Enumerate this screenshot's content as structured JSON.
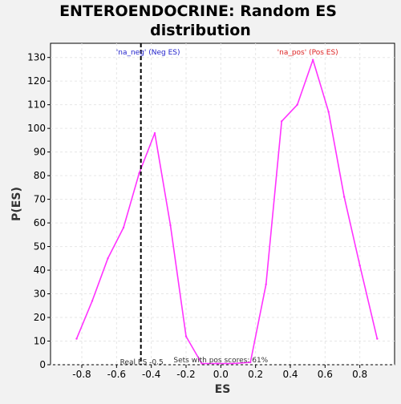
{
  "chart_data": {
    "type": "line",
    "title_line1": "ENTEROENDOCRINE: Random ES",
    "title_line2": "distribution",
    "xlabel": "ES",
    "ylabel": "P(ES)",
    "xlim": [
      -0.98,
      1.0
    ],
    "ylim": [
      0,
      136
    ],
    "xticks": [
      -0.8,
      -0.6,
      -0.4,
      -0.2,
      0.0,
      0.2,
      0.4,
      0.6,
      0.8
    ],
    "xtick_labels": [
      "-0.8",
      "-0.6",
      "-0.4",
      "-0.2",
      "0.0",
      "0.2",
      "0.4",
      "0.6",
      "0.8"
    ],
    "yticks": [
      0,
      10,
      20,
      30,
      40,
      50,
      60,
      70,
      80,
      90,
      100,
      110,
      120,
      130
    ],
    "grid": true,
    "series": [
      {
        "color": "#ff33ff",
        "x": [
          -0.83,
          -0.74,
          -0.65,
          -0.56,
          -0.47,
          -0.38,
          -0.29,
          -0.2,
          -0.11,
          -0.02,
          0.07,
          0.17,
          0.26,
          0.35,
          0.44,
          0.53,
          0.62,
          0.71,
          0.8,
          0.9
        ],
        "y": [
          11,
          27,
          45,
          58,
          81,
          98,
          59,
          12,
          0.5,
          0.5,
          0.5,
          1,
          34,
          103,
          110,
          129,
          107,
          71,
          42,
          11
        ]
      }
    ],
    "vline": {
      "x": -0.46,
      "label": "Real ES -0.5",
      "color": "#000000"
    },
    "annotations": {
      "neg_label": "'na_neg' (Neg ES)",
      "neg_color": "#2222cc",
      "pos_label": "'na_pos' (Pos ES)",
      "pos_color": "#dd2222",
      "pos_scores_text": "Sets with pos scores: 61%"
    }
  }
}
